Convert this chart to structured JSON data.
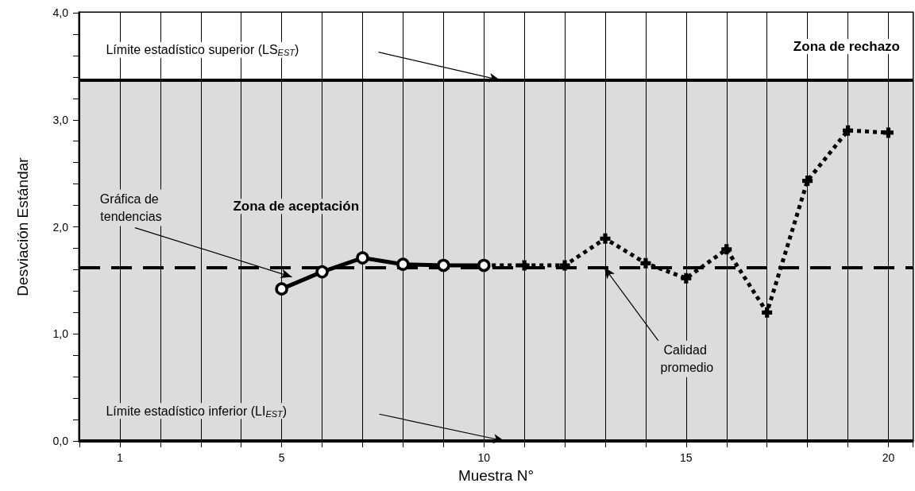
{
  "chart_data": {
    "type": "line",
    "xlabel": "Muestra N°",
    "ylabel": "Desviación Estándar",
    "xlim": [
      0,
      20.6
    ],
    "xticks": [
      {
        "value": 1,
        "label": "1"
      },
      {
        "value": 2,
        "label": null
      },
      {
        "value": 3,
        "label": null
      },
      {
        "value": 4,
        "label": null
      },
      {
        "value": 5,
        "label": "5"
      },
      {
        "value": 6,
        "label": null
      },
      {
        "value": 7,
        "label": null
      },
      {
        "value": 8,
        "label": null
      },
      {
        "value": 9,
        "label": null
      },
      {
        "value": 10,
        "label": "10"
      },
      {
        "value": 11,
        "label": null
      },
      {
        "value": 12,
        "label": null
      },
      {
        "value": 13,
        "label": null
      },
      {
        "value": 14,
        "label": null
      },
      {
        "value": 15,
        "label": "15"
      },
      {
        "value": 16,
        "label": null
      },
      {
        "value": 17,
        "label": null
      },
      {
        "value": 18,
        "label": null
      },
      {
        "value": 19,
        "label": null
      },
      {
        "value": 20,
        "label": "20"
      }
    ],
    "ylim": [
      0,
      4
    ],
    "yticks": [
      {
        "value": 0,
        "label": "0,0"
      },
      {
        "value": 0.2,
        "label": null
      },
      {
        "value": 0.4,
        "label": null
      },
      {
        "value": 0.6,
        "label": null
      },
      {
        "value": 0.8,
        "label": null
      },
      {
        "value": 1,
        "label": "1,0"
      },
      {
        "value": 1.2,
        "label": null
      },
      {
        "value": 1.4,
        "label": null
      },
      {
        "value": 1.6,
        "label": null
      },
      {
        "value": 1.8,
        "label": null
      },
      {
        "value": 2,
        "label": "2,0"
      },
      {
        "value": 2.2,
        "label": null
      },
      {
        "value": 2.4,
        "label": null
      },
      {
        "value": 2.6,
        "label": null
      },
      {
        "value": 2.8,
        "label": null
      },
      {
        "value": 3,
        "label": "3,0"
      },
      {
        "value": 3.2,
        "label": null
      },
      {
        "value": 3.4,
        "label": null
      },
      {
        "value": 3.6,
        "label": null
      },
      {
        "value": 3.8,
        "label": null
      },
      {
        "value": 4,
        "label": "4,0"
      }
    ],
    "grid": "x",
    "series": [
      {
        "color": "#000000",
        "marker": "circle",
        "line_style": "solid",
        "x": [
          5,
          6,
          7,
          8,
          9,
          10
        ],
        "values": [
          1.42,
          1.58,
          1.71,
          1.65,
          1.64,
          1.64
        ]
      },
      {
        "color": "#000000",
        "marker": "cross",
        "line_style": "dotted",
        "x": [
          10,
          11,
          12,
          13,
          14,
          15,
          16,
          17,
          18,
          19,
          20
        ],
        "values": [
          1.64,
          1.64,
          1.64,
          1.89,
          1.66,
          1.52,
          1.79,
          1.2,
          2.43,
          2.9,
          2.88
        ]
      }
    ],
    "bands": [
      {
        "axis": "y",
        "from": 0,
        "to": 3.37,
        "label": "Zona de aceptación",
        "color": "#dcdcdc"
      },
      {
        "axis": "y",
        "from": 3.37,
        "to": 4,
        "label": "Zona de rechazo",
        "color": "#ffffff"
      }
    ],
    "ref_lines": [
      {
        "axis": "y",
        "value": 3.37,
        "label": "Límite estadístico superior (LS$_{EST}$)",
        "color": "#000000",
        "line_style": "solid"
      },
      {
        "axis": "y",
        "value": 1.62,
        "label": "Calidad promedio",
        "color": "#000000",
        "line_style": "dashed"
      },
      {
        "axis": "y",
        "value": 0,
        "label": "Límite estadístico inferior (LI$_{EST}$)",
        "color": "#000000",
        "line_style": "solid"
      }
    ],
    "annotations": [
      "Gráfica de tendencias"
    ]
  }
}
